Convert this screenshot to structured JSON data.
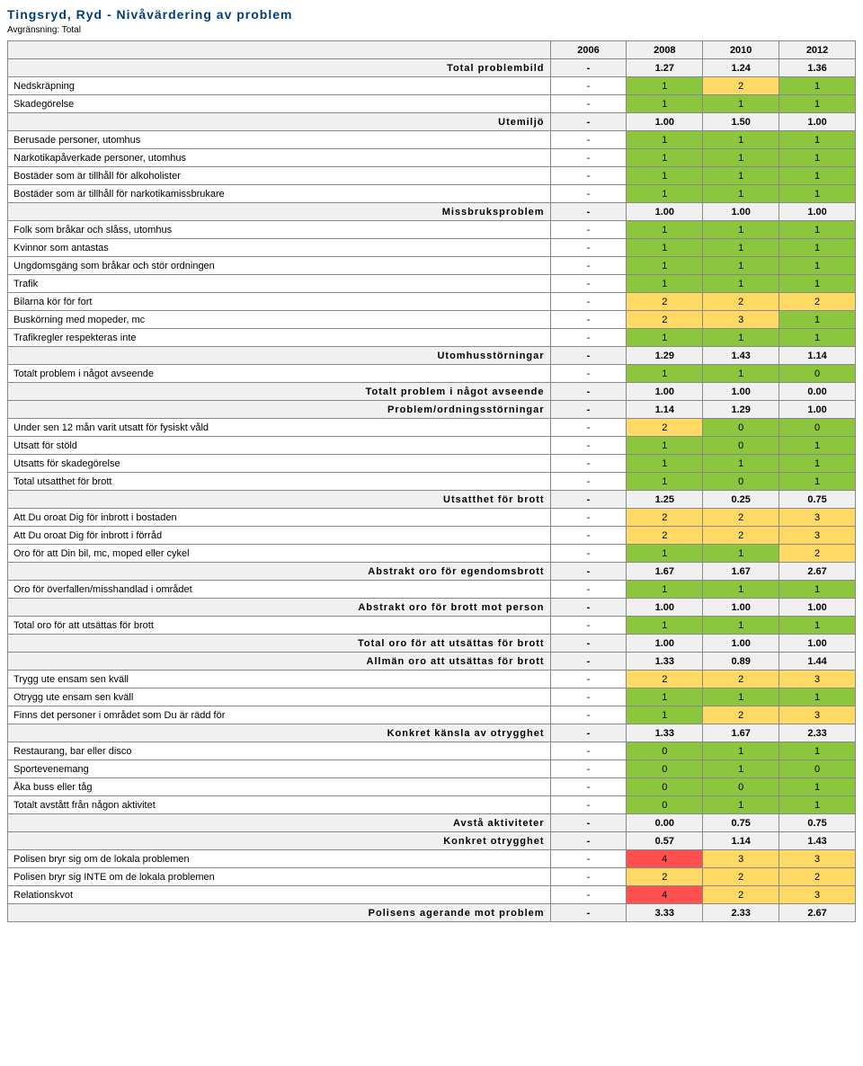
{
  "title": "Tingsryd, Ryd - Nivåvärdering av problem",
  "subtitle": "Avgränsning: Total",
  "years": [
    "2006",
    "2008",
    "2010",
    "2012"
  ],
  "colors": {
    "green": "#8cc63f",
    "yellow": "#ffd966",
    "red": "#ff5050",
    "section": "#f0f0f0",
    "none": "#ffffff"
  },
  "rows": [
    {
      "type": "section",
      "label": "Total problembild",
      "vals": [
        "-",
        "1.27",
        "1.24",
        "1.36"
      ],
      "cellColors": [
        "none",
        "none",
        "none",
        "none"
      ]
    },
    {
      "type": "data",
      "label": "Nedskräpning",
      "vals": [
        "-",
        "1",
        "2",
        "1"
      ],
      "cellColors": [
        "none",
        "green",
        "yellow",
        "green"
      ]
    },
    {
      "type": "data",
      "label": "Skadegörelse",
      "vals": [
        "-",
        "1",
        "1",
        "1"
      ],
      "cellColors": [
        "none",
        "green",
        "green",
        "green"
      ]
    },
    {
      "type": "section",
      "label": "Utemiljö",
      "vals": [
        "-",
        "1.00",
        "1.50",
        "1.00"
      ],
      "cellColors": [
        "none",
        "none",
        "none",
        "none"
      ]
    },
    {
      "type": "data",
      "label": "Berusade personer, utomhus",
      "vals": [
        "-",
        "1",
        "1",
        "1"
      ],
      "cellColors": [
        "none",
        "green",
        "green",
        "green"
      ]
    },
    {
      "type": "data",
      "label": "Narkotikapåverkade personer, utomhus",
      "vals": [
        "-",
        "1",
        "1",
        "1"
      ],
      "cellColors": [
        "none",
        "green",
        "green",
        "green"
      ]
    },
    {
      "type": "data",
      "label": "Bostäder som är tillhåll för alkoholister",
      "vals": [
        "-",
        "1",
        "1",
        "1"
      ],
      "cellColors": [
        "none",
        "green",
        "green",
        "green"
      ]
    },
    {
      "type": "data",
      "label": "Bostäder som är tillhåll för narkotikamissbrukare",
      "vals": [
        "-",
        "1",
        "1",
        "1"
      ],
      "cellColors": [
        "none",
        "green",
        "green",
        "green"
      ]
    },
    {
      "type": "section",
      "label": "Missbruksproblem",
      "vals": [
        "-",
        "1.00",
        "1.00",
        "1.00"
      ],
      "cellColors": [
        "none",
        "none",
        "none",
        "none"
      ]
    },
    {
      "type": "data",
      "label": "Folk som bråkar och slåss, utomhus",
      "vals": [
        "-",
        "1",
        "1",
        "1"
      ],
      "cellColors": [
        "none",
        "green",
        "green",
        "green"
      ]
    },
    {
      "type": "data",
      "label": "Kvinnor som antastas",
      "vals": [
        "-",
        "1",
        "1",
        "1"
      ],
      "cellColors": [
        "none",
        "green",
        "green",
        "green"
      ]
    },
    {
      "type": "data",
      "label": "Ungdomsgäng som bråkar och stör ordningen",
      "vals": [
        "-",
        "1",
        "1",
        "1"
      ],
      "cellColors": [
        "none",
        "green",
        "green",
        "green"
      ]
    },
    {
      "type": "data",
      "label": "Trafik",
      "vals": [
        "-",
        "1",
        "1",
        "1"
      ],
      "cellColors": [
        "none",
        "green",
        "green",
        "green"
      ]
    },
    {
      "type": "data",
      "label": "Bilarna kör för fort",
      "vals": [
        "-",
        "2",
        "2",
        "2"
      ],
      "cellColors": [
        "none",
        "yellow",
        "yellow",
        "yellow"
      ]
    },
    {
      "type": "data",
      "label": "Buskörning med mopeder, mc",
      "vals": [
        "-",
        "2",
        "3",
        "1"
      ],
      "cellColors": [
        "none",
        "yellow",
        "yellow",
        "green"
      ]
    },
    {
      "type": "data",
      "label": "Trafikregler respekteras inte",
      "vals": [
        "-",
        "1",
        "1",
        "1"
      ],
      "cellColors": [
        "none",
        "green",
        "green",
        "green"
      ]
    },
    {
      "type": "section",
      "label": "Utomhusstörningar",
      "vals": [
        "-",
        "1.29",
        "1.43",
        "1.14"
      ],
      "cellColors": [
        "none",
        "none",
        "none",
        "none"
      ]
    },
    {
      "type": "data",
      "label": "Totalt problem i något avseende",
      "vals": [
        "-",
        "1",
        "1",
        "0"
      ],
      "cellColors": [
        "none",
        "green",
        "green",
        "green"
      ]
    },
    {
      "type": "section",
      "label": "Totalt problem i något avseende",
      "vals": [
        "-",
        "1.00",
        "1.00",
        "0.00"
      ],
      "cellColors": [
        "none",
        "none",
        "none",
        "none"
      ]
    },
    {
      "type": "section",
      "label": "Problem/ordningsstörningar",
      "vals": [
        "-",
        "1.14",
        "1.29",
        "1.00"
      ],
      "cellColors": [
        "none",
        "none",
        "none",
        "none"
      ]
    },
    {
      "type": "data",
      "label": "Under sen 12 mån varit utsatt för fysiskt våld",
      "vals": [
        "-",
        "2",
        "0",
        "0"
      ],
      "cellColors": [
        "none",
        "yellow",
        "green",
        "green"
      ]
    },
    {
      "type": "data",
      "label": "Utsatt för stöld",
      "vals": [
        "-",
        "1",
        "0",
        "1"
      ],
      "cellColors": [
        "none",
        "green",
        "green",
        "green"
      ]
    },
    {
      "type": "data",
      "label": "Utsatts för skadegörelse",
      "vals": [
        "-",
        "1",
        "1",
        "1"
      ],
      "cellColors": [
        "none",
        "green",
        "green",
        "green"
      ]
    },
    {
      "type": "data",
      "label": "Total utsatthet för brott",
      "vals": [
        "-",
        "1",
        "0",
        "1"
      ],
      "cellColors": [
        "none",
        "green",
        "green",
        "green"
      ]
    },
    {
      "type": "section",
      "label": "Utsatthet för brott",
      "vals": [
        "-",
        "1.25",
        "0.25",
        "0.75"
      ],
      "cellColors": [
        "none",
        "none",
        "none",
        "none"
      ]
    },
    {
      "type": "data",
      "label": "Att Du oroat Dig för inbrott i bostaden",
      "vals": [
        "-",
        "2",
        "2",
        "3"
      ],
      "cellColors": [
        "none",
        "yellow",
        "yellow",
        "yellow"
      ]
    },
    {
      "type": "data",
      "label": "Att Du oroat Dig för inbrott i förråd",
      "vals": [
        "-",
        "2",
        "2",
        "3"
      ],
      "cellColors": [
        "none",
        "yellow",
        "yellow",
        "yellow"
      ]
    },
    {
      "type": "data",
      "label": "Oro för att Din bil, mc, moped eller cykel",
      "vals": [
        "-",
        "1",
        "1",
        "2"
      ],
      "cellColors": [
        "none",
        "green",
        "green",
        "yellow"
      ]
    },
    {
      "type": "section",
      "label": "Abstrakt oro för egendomsbrott",
      "vals": [
        "-",
        "1.67",
        "1.67",
        "2.67"
      ],
      "cellColors": [
        "none",
        "none",
        "none",
        "none"
      ]
    },
    {
      "type": "data",
      "label": "Oro för överfallen/misshandlad i området",
      "vals": [
        "-",
        "1",
        "1",
        "1"
      ],
      "cellColors": [
        "none",
        "green",
        "green",
        "green"
      ]
    },
    {
      "type": "section",
      "label": "Abstrakt oro för brott mot person",
      "vals": [
        "-",
        "1.00",
        "1.00",
        "1.00"
      ],
      "cellColors": [
        "none",
        "none",
        "none",
        "none"
      ]
    },
    {
      "type": "data",
      "label": "Total oro för att utsättas för brott",
      "vals": [
        "-",
        "1",
        "1",
        "1"
      ],
      "cellColors": [
        "none",
        "green",
        "green",
        "green"
      ]
    },
    {
      "type": "section",
      "label": "Total oro för att utsättas för brott",
      "vals": [
        "-",
        "1.00",
        "1.00",
        "1.00"
      ],
      "cellColors": [
        "none",
        "none",
        "none",
        "none"
      ]
    },
    {
      "type": "section",
      "label": "Allmän oro att utsättas för brott",
      "vals": [
        "-",
        "1.33",
        "0.89",
        "1.44"
      ],
      "cellColors": [
        "none",
        "none",
        "none",
        "none"
      ]
    },
    {
      "type": "data",
      "label": "Trygg ute ensam sen kväll",
      "vals": [
        "-",
        "2",
        "2",
        "3"
      ],
      "cellColors": [
        "none",
        "yellow",
        "yellow",
        "yellow"
      ]
    },
    {
      "type": "data",
      "label": "Otrygg ute ensam sen kväll",
      "vals": [
        "-",
        "1",
        "1",
        "1"
      ],
      "cellColors": [
        "none",
        "green",
        "green",
        "green"
      ]
    },
    {
      "type": "data",
      "label": "Finns det personer i området som Du är rädd för",
      "vals": [
        "-",
        "1",
        "2",
        "3"
      ],
      "cellColors": [
        "none",
        "green",
        "yellow",
        "yellow"
      ]
    },
    {
      "type": "section",
      "label": "Konkret känsla av otrygghet",
      "vals": [
        "-",
        "1.33",
        "1.67",
        "2.33"
      ],
      "cellColors": [
        "none",
        "none",
        "none",
        "none"
      ]
    },
    {
      "type": "data",
      "label": "Restaurang, bar eller disco",
      "vals": [
        "-",
        "0",
        "1",
        "1"
      ],
      "cellColors": [
        "none",
        "green",
        "green",
        "green"
      ]
    },
    {
      "type": "data",
      "label": "Sportevenemang",
      "vals": [
        "-",
        "0",
        "1",
        "0"
      ],
      "cellColors": [
        "none",
        "green",
        "green",
        "green"
      ]
    },
    {
      "type": "data",
      "label": "Åka buss eller tåg",
      "vals": [
        "-",
        "0",
        "0",
        "1"
      ],
      "cellColors": [
        "none",
        "green",
        "green",
        "green"
      ]
    },
    {
      "type": "data",
      "label": "Totalt avstått från någon aktivitet",
      "vals": [
        "-",
        "0",
        "1",
        "1"
      ],
      "cellColors": [
        "none",
        "green",
        "green",
        "green"
      ]
    },
    {
      "type": "section",
      "label": "Avstå aktiviteter",
      "vals": [
        "-",
        "0.00",
        "0.75",
        "0.75"
      ],
      "cellColors": [
        "none",
        "none",
        "none",
        "none"
      ]
    },
    {
      "type": "section",
      "label": "Konkret otrygghet",
      "vals": [
        "-",
        "0.57",
        "1.14",
        "1.43"
      ],
      "cellColors": [
        "none",
        "none",
        "none",
        "none"
      ]
    },
    {
      "type": "data",
      "label": "Polisen bryr sig om de lokala problemen",
      "vals": [
        "-",
        "4",
        "3",
        "3"
      ],
      "cellColors": [
        "none",
        "red",
        "yellow",
        "yellow"
      ]
    },
    {
      "type": "data",
      "label": "Polisen bryr sig INTE om de lokala problemen",
      "vals": [
        "-",
        "2",
        "2",
        "2"
      ],
      "cellColors": [
        "none",
        "yellow",
        "yellow",
        "yellow"
      ]
    },
    {
      "type": "data",
      "label": "Relationskvot",
      "vals": [
        "-",
        "4",
        "2",
        "3"
      ],
      "cellColors": [
        "none",
        "red",
        "yellow",
        "yellow"
      ]
    },
    {
      "type": "section",
      "label": "Polisens agerande mot problem",
      "vals": [
        "-",
        "3.33",
        "2.33",
        "2.67"
      ],
      "cellColors": [
        "none",
        "none",
        "none",
        "none"
      ]
    }
  ]
}
